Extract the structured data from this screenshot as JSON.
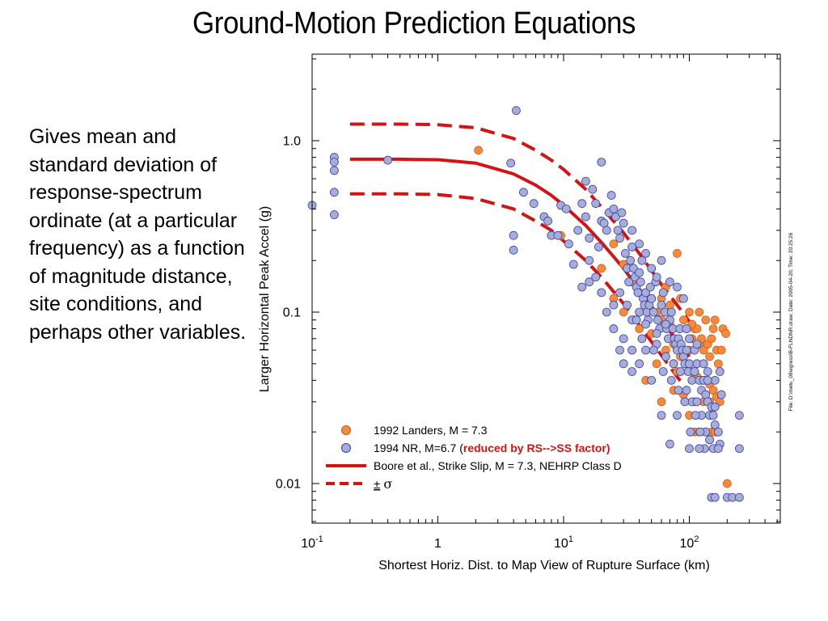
{
  "slide": {
    "title": "Ground-Motion Prediction Equations",
    "description": "Gives mean and standard deviation of response-spectrum ordinate (at a particular frequency) as a function of magnitude distance, site conditions, and perhaps other variables."
  },
  "colors": {
    "landers_fill": "#f58a3c",
    "nr_fill": "#a6aed6",
    "nr_stroke": "#3a3fb0",
    "boore_line": "#d41414",
    "highlight_text": "#d41414"
  },
  "chart_data": {
    "type": "scatter",
    "xlabel": "Shortest  Horiz.  Dist.  to  Map  View  of  Rupture  Surface  (km)",
    "ylabel": "Larger  Horizontal  Peak  Accel  (g)",
    "x_scale": "log",
    "y_scale": "log",
    "xlim": [
      0.1,
      500
    ],
    "ylim": [
      0.006,
      3.5
    ],
    "x_ticks": [
      {
        "value": 0.1,
        "base": "10",
        "exp": "-1"
      },
      {
        "value": 1,
        "base": "1",
        "exp": ""
      },
      {
        "value": 10,
        "base": "10",
        "exp": "1"
      },
      {
        "value": 100,
        "base": "10",
        "exp": "2"
      }
    ],
    "y_ticks": [
      {
        "value": 0.01,
        "label": "0.01"
      },
      {
        "value": 0.1,
        "label": "0.1"
      },
      {
        "value": 1.0,
        "label": "1.0"
      }
    ],
    "side_note": "File: D:\\metu_09\\egress\\B-FLNDNR.draw; Date: 2005-04-20; Time: 20:25:26",
    "legend": {
      "placement": "bottom-left",
      "landers": "1992  Landers,   M = 7.3",
      "nr_prefix": "1994  NR,  M=6.7  (",
      "nr_highlight": "reduced   by  RS-->SS   factor)",
      "boore": "Boore  et al.,  Strike  Slip,  M = 7.3,  NEHRP  Class  D",
      "sigma_pm": "±",
      "sigma_symbol": "σ"
    },
    "series": [
      {
        "name": "1992  Landers,   M = 7.3",
        "kind": "points",
        "points": [
          [
            2.1,
            0.88
          ],
          [
            9.5,
            0.28
          ],
          [
            20,
            0.18
          ],
          [
            25,
            0.25
          ],
          [
            30,
            0.19
          ],
          [
            35,
            0.15
          ],
          [
            40,
            0.13
          ],
          [
            45,
            0.11
          ],
          [
            50,
            0.12
          ],
          [
            55,
            0.1
          ],
          [
            60,
            0.12
          ],
          [
            65,
            0.14
          ],
          [
            70,
            0.11
          ],
          [
            80,
            0.22
          ],
          [
            85,
            0.12
          ],
          [
            90,
            0.09
          ],
          [
            95,
            0.08
          ],
          [
            100,
            0.1
          ],
          [
            105,
            0.07
          ],
          [
            110,
            0.08
          ],
          [
            115,
            0.08
          ],
          [
            120,
            0.065
          ],
          [
            125,
            0.07
          ],
          [
            130,
            0.06
          ],
          [
            140,
            0.065
          ],
          [
            145,
            0.055
          ],
          [
            150,
            0.07
          ],
          [
            155,
            0.08
          ],
          [
            160,
            0.09
          ],
          [
            165,
            0.06
          ],
          [
            170,
            0.05
          ],
          [
            60,
            0.09
          ],
          [
            70,
            0.085
          ],
          [
            50,
            0.075
          ],
          [
            75,
            0.065
          ],
          [
            85,
            0.055
          ],
          [
            95,
            0.05
          ],
          [
            105,
            0.045
          ],
          [
            115,
            0.042
          ],
          [
            125,
            0.04
          ],
          [
            135,
            0.04
          ],
          [
            145,
            0.038
          ],
          [
            155,
            0.035
          ],
          [
            165,
            0.032
          ],
          [
            175,
            0.03
          ],
          [
            60,
            0.03
          ],
          [
            75,
            0.035
          ],
          [
            90,
            0.033
          ],
          [
            100,
            0.025
          ],
          [
            110,
            0.02
          ],
          [
            120,
            0.02
          ],
          [
            135,
            0.02
          ],
          [
            150,
            0.02
          ],
          [
            160,
            0.02
          ],
          [
            170,
            0.02
          ],
          [
            110,
            0.03
          ],
          [
            130,
            0.03
          ],
          [
            145,
            0.03
          ],
          [
            200,
            0.01
          ],
          [
            185,
            0.08
          ],
          [
            100,
            0.06
          ],
          [
            80,
            0.045
          ],
          [
            65,
            0.06
          ],
          [
            40,
            0.08
          ],
          [
            35,
            0.06
          ],
          [
            30,
            0.1
          ],
          [
            25,
            0.12
          ],
          [
            45,
            0.04
          ],
          [
            55,
            0.05
          ],
          [
            180,
            0.06
          ],
          [
            195,
            0.075
          ],
          [
            135,
            0.09
          ],
          [
            120,
            0.1
          ],
          [
            105,
            0.085
          ]
        ]
      },
      {
        "name": "1994  NR,  M=6.7  (reduced   by  RS-->SS   factor)",
        "kind": "points",
        "points": [
          [
            0.1,
            0.42
          ],
          [
            0.15,
            0.8
          ],
          [
            0.15,
            0.75
          ],
          [
            0.15,
            0.67
          ],
          [
            0.15,
            0.5
          ],
          [
            0.15,
            0.37
          ],
          [
            0.4,
            0.77
          ],
          [
            4.2,
            1.5
          ],
          [
            3.8,
            0.74
          ],
          [
            4.0,
            0.28
          ],
          [
            4.0,
            0.23
          ],
          [
            4.8,
            0.5
          ],
          [
            5.8,
            0.43
          ],
          [
            7.0,
            0.36
          ],
          [
            7.5,
            0.34
          ],
          [
            8.0,
            0.28
          ],
          [
            9.0,
            0.28
          ],
          [
            9.5,
            0.42
          ],
          [
            10.5,
            0.4
          ],
          [
            11,
            0.25
          ],
          [
            12,
            0.19
          ],
          [
            13,
            0.3
          ],
          [
            14,
            0.43
          ],
          [
            15,
            0.58
          ],
          [
            15,
            0.36
          ],
          [
            16,
            0.27
          ],
          [
            16,
            0.2
          ],
          [
            17,
            0.52
          ],
          [
            18,
            0.43
          ],
          [
            19,
            0.24
          ],
          [
            20,
            0.34
          ],
          [
            20,
            0.75
          ],
          [
            21,
            0.33
          ],
          [
            22,
            0.3
          ],
          [
            23,
            0.38
          ],
          [
            24,
            0.48
          ],
          [
            25,
            0.4
          ],
          [
            26,
            0.36
          ],
          [
            27,
            0.3
          ],
          [
            28,
            0.27
          ],
          [
            29,
            0.38
          ],
          [
            30,
            0.33
          ],
          [
            31,
            0.22
          ],
          [
            32,
            0.18
          ],
          [
            33,
            0.15
          ],
          [
            34,
            0.2
          ],
          [
            35,
            0.24
          ],
          [
            36,
            0.18
          ],
          [
            37,
            0.16
          ],
          [
            38,
            0.14
          ],
          [
            39,
            0.13
          ],
          [
            40,
            0.17
          ],
          [
            41,
            0.15
          ],
          [
            42,
            0.2
          ],
          [
            43,
            0.12
          ],
          [
            44,
            0.11
          ],
          [
            45,
            0.13
          ],
          [
            46,
            0.1
          ],
          [
            47,
            0.09
          ],
          [
            48,
            0.11
          ],
          [
            49,
            0.14
          ],
          [
            50,
            0.12
          ],
          [
            52,
            0.1
          ],
          [
            54,
            0.15
          ],
          [
            56,
            0.09
          ],
          [
            58,
            0.08
          ],
          [
            60,
            0.11
          ],
          [
            62,
            0.13
          ],
          [
            64,
            0.1
          ],
          [
            66,
            0.08
          ],
          [
            68,
            0.07
          ],
          [
            70,
            0.09
          ],
          [
            72,
            0.1
          ],
          [
            74,
            0.08
          ],
          [
            76,
            0.07
          ],
          [
            78,
            0.065
          ],
          [
            80,
            0.06
          ],
          [
            82,
            0.07
          ],
          [
            84,
            0.08
          ],
          [
            86,
            0.065
          ],
          [
            88,
            0.06
          ],
          [
            90,
            0.055
          ],
          [
            92,
            0.05
          ],
          [
            95,
            0.06
          ],
          [
            98,
            0.045
          ],
          [
            100,
            0.05
          ],
          [
            105,
            0.04
          ],
          [
            110,
            0.045
          ],
          [
            115,
            0.05
          ],
          [
            120,
            0.04
          ],
          [
            125,
            0.035
          ],
          [
            130,
            0.04
          ],
          [
            135,
            0.033
          ],
          [
            140,
            0.03
          ],
          [
            145,
            0.025
          ],
          [
            150,
            0.028
          ],
          [
            155,
            0.025
          ],
          [
            160,
            0.022
          ],
          [
            170,
            0.02
          ],
          [
            175,
            0.017
          ],
          [
            150,
            0.0083
          ],
          [
            160,
            0.0083
          ],
          [
            200,
            0.0083
          ],
          [
            220,
            0.0083
          ],
          [
            250,
            0.0083
          ],
          [
            250,
            0.025
          ],
          [
            250,
            0.016
          ],
          [
            70,
            0.017
          ],
          [
            80,
            0.025
          ],
          [
            60,
            0.025
          ],
          [
            50,
            0.04
          ],
          [
            40,
            0.05
          ],
          [
            35,
            0.06
          ],
          [
            30,
            0.07
          ],
          [
            28,
            0.06
          ],
          [
            25,
            0.08
          ],
          [
            22,
            0.1
          ],
          [
            20,
            0.13
          ],
          [
            18,
            0.16
          ],
          [
            16,
            0.15
          ],
          [
            14,
            0.14
          ],
          [
            30,
            0.05
          ],
          [
            35,
            0.045
          ],
          [
            45,
            0.06
          ],
          [
            55,
            0.065
          ],
          [
            65,
            0.055
          ],
          [
            75,
            0.05
          ],
          [
            85,
            0.045
          ],
          [
            95,
            0.035
          ],
          [
            105,
            0.03
          ],
          [
            115,
            0.03
          ],
          [
            125,
            0.025
          ],
          [
            135,
            0.02
          ],
          [
            145,
            0.018
          ],
          [
            155,
            0.016
          ],
          [
            170,
            0.016
          ],
          [
            40,
            0.1
          ],
          [
            45,
            0.085
          ],
          [
            55,
            0.075
          ],
          [
            65,
            0.085
          ],
          [
            35,
            0.09
          ],
          [
            25,
            0.11
          ],
          [
            28,
            0.13
          ],
          [
            32,
            0.11
          ],
          [
            38,
            0.09
          ],
          [
            42,
            0.07
          ],
          [
            52,
            0.06
          ],
          [
            62,
            0.045
          ],
          [
            72,
            0.04
          ],
          [
            82,
            0.035
          ],
          [
            92,
            0.03
          ],
          [
            102,
            0.02
          ],
          [
            112,
            0.025
          ],
          [
            122,
            0.02
          ],
          [
            132,
            0.016
          ],
          [
            100,
            0.016
          ],
          [
            120,
            0.016
          ],
          [
            60,
            0.2
          ],
          [
            50,
            0.18
          ],
          [
            40,
            0.25
          ],
          [
            35,
            0.3
          ],
          [
            45,
            0.22
          ],
          [
            55,
            0.16
          ],
          [
            70,
            0.15
          ],
          [
            80,
            0.14
          ],
          [
            90,
            0.12
          ],
          [
            100,
            0.07
          ],
          [
            110,
            0.06
          ],
          [
            130,
            0.05
          ],
          [
            140,
            0.045
          ],
          [
            160,
            0.04
          ],
          [
            175,
            0.045
          ],
          [
            180,
            0.033
          ],
          [
            160,
            0.028
          ],
          [
            140,
            0.04
          ],
          [
            115,
            0.065
          ],
          [
            95,
            0.08
          ]
        ]
      },
      {
        "name": "Boore  et al.,  Strike  Slip,  M = 7.3,  NEHRP  Class  D",
        "kind": "line",
        "style": "solid",
        "points": [
          [
            0.2,
            0.78
          ],
          [
            0.5,
            0.78
          ],
          [
            1,
            0.775
          ],
          [
            2,
            0.74
          ],
          [
            4,
            0.64
          ],
          [
            6,
            0.55
          ],
          [
            8,
            0.48
          ],
          [
            10,
            0.42
          ],
          [
            15,
            0.32
          ],
          [
            20,
            0.255
          ],
          [
            30,
            0.18
          ],
          [
            40,
            0.135
          ],
          [
            60,
            0.09
          ],
          [
            80,
            0.068
          ],
          [
            100,
            0.055
          ]
        ]
      },
      {
        "name": "+σ",
        "kind": "line",
        "style": "dashed",
        "points": [
          [
            0.2,
            1.25
          ],
          [
            0.5,
            1.25
          ],
          [
            1,
            1.24
          ],
          [
            2,
            1.19
          ],
          [
            4,
            1.03
          ],
          [
            6,
            0.88
          ],
          [
            8,
            0.77
          ],
          [
            10,
            0.68
          ],
          [
            15,
            0.52
          ],
          [
            20,
            0.41
          ],
          [
            30,
            0.29
          ],
          [
            40,
            0.22
          ],
          [
            60,
            0.145
          ],
          [
            80,
            0.11
          ],
          [
            100,
            0.088
          ]
        ]
      },
      {
        "name": "-σ",
        "kind": "line",
        "style": "dashed",
        "points": [
          [
            0.2,
            0.49
          ],
          [
            0.5,
            0.49
          ],
          [
            1,
            0.485
          ],
          [
            2,
            0.46
          ],
          [
            4,
            0.4
          ],
          [
            6,
            0.34
          ],
          [
            8,
            0.3
          ],
          [
            10,
            0.26
          ],
          [
            15,
            0.2
          ],
          [
            20,
            0.16
          ],
          [
            30,
            0.112
          ],
          [
            40,
            0.084
          ],
          [
            60,
            0.056
          ],
          [
            80,
            0.042
          ],
          [
            100,
            0.034
          ]
        ]
      }
    ]
  }
}
